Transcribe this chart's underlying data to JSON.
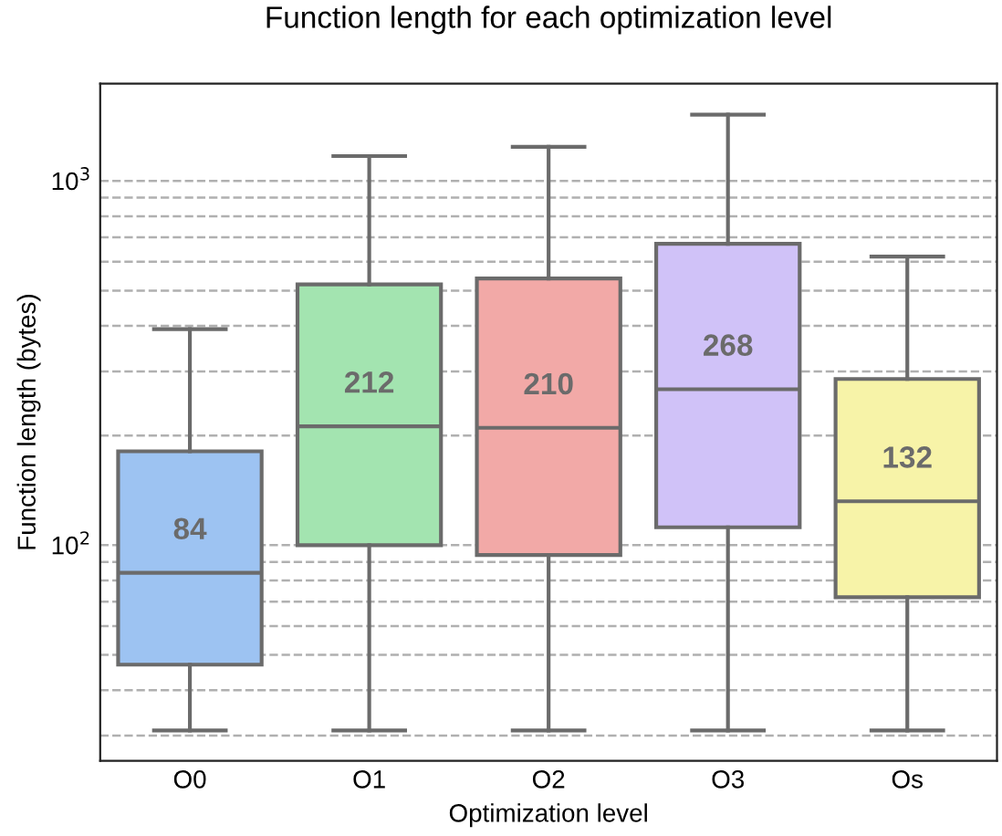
{
  "chart_data": {
    "type": "box",
    "title": "Function length for each optimization level",
    "xlabel": "Optimization level",
    "ylabel": "Function length (bytes)",
    "categories": [
      "O0",
      "O1",
      "O2",
      "O3",
      "Os"
    ],
    "colors": [
      "#9dc3f2",
      "#a3e4b0",
      "#f2a9a7",
      "#d0c2f8",
      "#f7f3a8"
    ],
    "boxes": [
      {
        "low": 31,
        "q1": 47,
        "median": 84,
        "q3": 181,
        "high": 392
      },
      {
        "low": 31,
        "q1": 100,
        "median": 212,
        "q3": 520,
        "high": 1170
      },
      {
        "low": 31,
        "q1": 94,
        "median": 210,
        "q3": 540,
        "high": 1240
      },
      {
        "low": 31,
        "q1": 112,
        "median": 268,
        "q3": 672,
        "high": 1520
      },
      {
        "low": 31,
        "q1": 72,
        "median": 132,
        "q3": 286,
        "high": 620
      }
    ],
    "value_labels": [
      "84",
      "212",
      "210",
      "268",
      "132"
    ],
    "log": "y",
    "ylim": [
      25.6,
      1850
    ],
    "yticks": [
      {
        "value": 30,
        "label": null
      },
      {
        "value": 40,
        "label": null
      },
      {
        "value": 50,
        "label": null
      },
      {
        "value": 60,
        "label": null
      },
      {
        "value": 70,
        "label": null
      },
      {
        "value": 80,
        "label": null
      },
      {
        "value": 90,
        "label": null
      },
      {
        "value": 100,
        "label": "10$^{2}$"
      },
      {
        "value": 200,
        "label": null
      },
      {
        "value": 300,
        "label": null
      },
      {
        "value": 400,
        "label": null
      },
      {
        "value": 500,
        "label": null
      },
      {
        "value": 600,
        "label": null
      },
      {
        "value": 700,
        "label": null
      },
      {
        "value": 800,
        "label": null
      },
      {
        "value": 900,
        "label": null
      },
      {
        "value": 1000,
        "label": "10$^{3}$"
      }
    ],
    "grid": "y"
  }
}
